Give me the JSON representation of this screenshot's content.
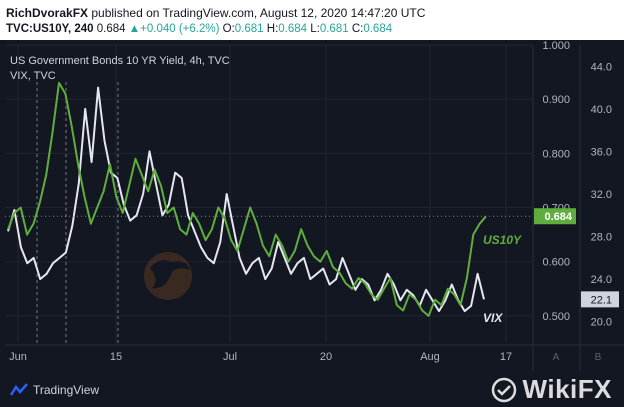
{
  "header": {
    "author": "RichDvorakFX",
    "published": " published on TradingView.com, August 12, 2020 14:47:20 UTC",
    "symbol": "TVC:US10Y, 240",
    "last": "0.684",
    "change": "+0.040 (+6.2%)",
    "o_label": "O:",
    "o_val": "0.681",
    "h_label": "H:",
    "h_val": "0.684",
    "l_label": "L:",
    "l_val": "0.681",
    "c_label": "C:",
    "c_val": "0.684"
  },
  "legend": {
    "series1": "US Government Bonds 10 YR Yield, 4h, TVC",
    "series2": "VIX, TVC"
  },
  "footer": {
    "brand": "TradingView",
    "watermark": "WikiFX"
  },
  "colors": {
    "background": "#131722",
    "us10y": "#5fae3d",
    "vix": "#e6e6f0",
    "axis_text": "#b2b5be",
    "grid": "#1f2433"
  },
  "chart_data": {
    "type": "line",
    "x_tick_labels": [
      "Jun",
      "15",
      "Jul",
      "20",
      "Aug",
      "17"
    ],
    "left_axis": {
      "ticks": [
        "1.000",
        "0.900",
        "0.800",
        "0.700",
        "0.600",
        "0.500"
      ],
      "ylim": [
        0.45,
        1.0
      ]
    },
    "right_axis": {
      "ticks": [
        "44.0",
        "40.0",
        "36.0",
        "32.0",
        "28.0",
        "24.0",
        "20.0"
      ],
      "ylim": [
        18.0,
        46.0
      ]
    },
    "scale_buttons": [
      "A",
      "B"
    ],
    "series": [
      {
        "name": "US10Y",
        "axis": "left",
        "last_value": "0.684",
        "x": [
          0,
          1,
          2,
          3,
          4,
          5,
          6,
          7,
          8,
          9,
          10,
          11,
          12,
          13,
          14,
          15,
          16,
          17,
          18,
          19,
          20,
          21,
          22,
          23,
          24,
          25,
          26,
          27,
          28,
          29,
          30,
          31,
          32,
          33,
          34,
          35,
          36,
          37,
          38,
          39,
          40,
          41,
          42,
          43,
          44,
          45,
          46,
          47,
          48,
          49,
          50,
          51,
          52,
          53,
          54,
          55,
          56,
          57,
          58,
          59,
          60,
          61,
          62,
          63,
          64,
          65,
          66,
          67,
          68,
          69,
          70,
          71,
          72,
          73,
          74,
          75
        ],
        "values": [
          0.66,
          0.69,
          0.7,
          0.65,
          0.67,
          0.71,
          0.76,
          0.84,
          0.93,
          0.91,
          0.85,
          0.78,
          0.72,
          0.67,
          0.7,
          0.73,
          0.78,
          0.72,
          0.69,
          0.74,
          0.79,
          0.76,
          0.73,
          0.77,
          0.74,
          0.69,
          0.7,
          0.66,
          0.65,
          0.69,
          0.67,
          0.64,
          0.66,
          0.7,
          0.68,
          0.64,
          0.62,
          0.66,
          0.7,
          0.67,
          0.63,
          0.61,
          0.65,
          0.63,
          0.6,
          0.62,
          0.66,
          0.63,
          0.61,
          0.6,
          0.62,
          0.59,
          0.58,
          0.56,
          0.55,
          0.57,
          0.56,
          0.54,
          0.53,
          0.55,
          0.57,
          0.52,
          0.51,
          0.54,
          0.53,
          0.51,
          0.5,
          0.53,
          0.52,
          0.55,
          0.54,
          0.52,
          0.57,
          0.65,
          0.67,
          0.684
        ]
      },
      {
        "name": "VIX",
        "axis": "right",
        "last_value": "22.1",
        "x": [
          0,
          1,
          2,
          3,
          4,
          5,
          6,
          7,
          8,
          9,
          10,
          11,
          12,
          13,
          14,
          15,
          16,
          17,
          18,
          19,
          20,
          21,
          22,
          23,
          24,
          25,
          26,
          27,
          28,
          29,
          30,
          31,
          32,
          33,
          34,
          35,
          36,
          37,
          38,
          39,
          40,
          41,
          42,
          43,
          44,
          45,
          46,
          47,
          48,
          49,
          50,
          51,
          52,
          53,
          54,
          55,
          56,
          57,
          58,
          59,
          60,
          61,
          62,
          63,
          64,
          65,
          66,
          67,
          68,
          69,
          70,
          71,
          72,
          73,
          74
        ],
        "values": [
          28.5,
          30.5,
          27.0,
          25.5,
          26.0,
          24.0,
          24.5,
          25.5,
          26.0,
          26.5,
          29.0,
          33.0,
          40.0,
          35.0,
          42.0,
          37.0,
          34.0,
          33.5,
          31.0,
          29.5,
          30.0,
          32.0,
          36.0,
          33.0,
          30.0,
          31.0,
          34.0,
          33.5,
          30.0,
          28.5,
          27.0,
          26.0,
          25.5,
          27.5,
          32.0,
          29.0,
          26.0,
          24.5,
          25.5,
          26.0,
          24.0,
          25.0,
          27.5,
          26.0,
          24.5,
          25.5,
          26.0,
          24.0,
          24.5,
          25.0,
          23.5,
          24.0,
          26.0,
          24.5,
          23.0,
          24.0,
          23.5,
          22.0,
          23.0,
          24.5,
          23.5,
          22.0,
          23.0,
          22.5,
          21.5,
          23.0,
          22.0,
          21.0,
          22.0,
          23.5,
          22.0,
          21.0,
          21.5,
          24.5,
          22.1
        ]
      }
    ],
    "annotations": [
      "US10Y",
      "VIX"
    ]
  }
}
